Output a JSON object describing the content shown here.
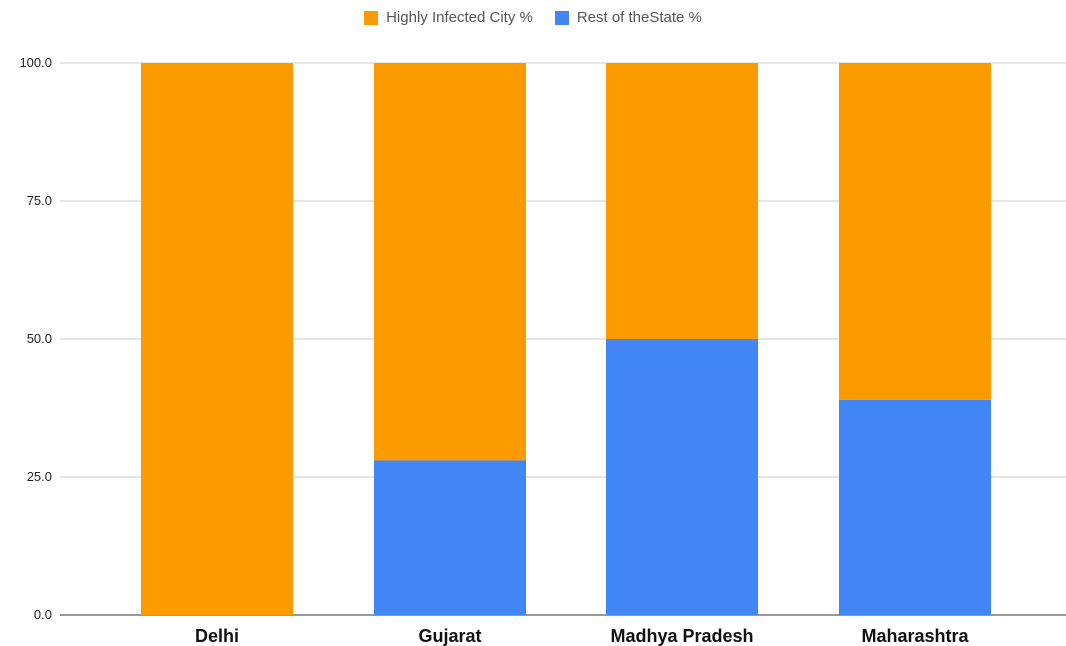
{
  "chart_data": {
    "type": "bar",
    "stacked": true,
    "categories": [
      "Delhi",
      "Gujarat",
      "Madhya Pradesh",
      "Maharashtra"
    ],
    "series": [
      {
        "name": "Rest of theState %",
        "color": "#4285f4",
        "values": [
          0,
          28,
          50,
          39
        ]
      },
      {
        "name": "Highly Infected City %",
        "color": "#fb9b00",
        "values": [
          100,
          72,
          50,
          61
        ]
      }
    ],
    "legend_order": [
      "Highly Infected City %",
      "Rest of theState %"
    ],
    "legend_position": "top-center",
    "yticks": [
      "0.0",
      "25.0",
      "50.0",
      "75.0",
      "100.0"
    ],
    "ylim": [
      0,
      100
    ],
    "grid": true,
    "title": "",
    "xlabel": "",
    "ylabel": ""
  }
}
